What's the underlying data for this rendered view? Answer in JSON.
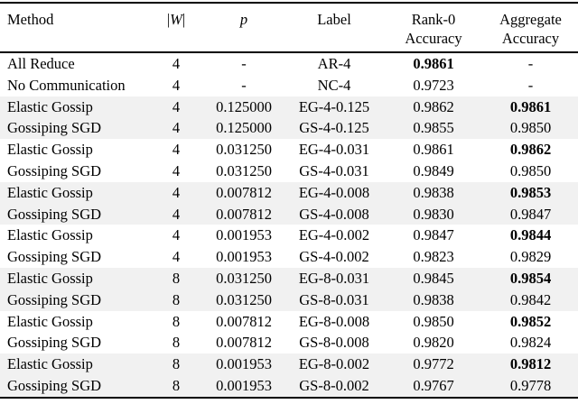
{
  "colors": {
    "background": "#ffffff",
    "stripe": "#f1f1f1",
    "rule": "#000000",
    "text": "#000000"
  },
  "table": {
    "header": {
      "method": "Method",
      "w_bar": "|",
      "w_letter": "W",
      "p": "p",
      "label": "Label",
      "rank0_line1": "Rank-0",
      "rank0_line2": "Accuracy",
      "aggregate_line1": "Aggregate",
      "aggregate_line2": "Accuracy"
    },
    "rows": [
      {
        "method": "All Reduce",
        "workers": "4",
        "p": "-",
        "label": "AR-4",
        "rank0": "0.9861",
        "rank0_bold": true,
        "aggregate": "-",
        "aggregate_bold": false,
        "shaded": false
      },
      {
        "method": "No Communication",
        "workers": "4",
        "p": "-",
        "label": "NC-4",
        "rank0": "0.9723",
        "rank0_bold": false,
        "aggregate": "-",
        "aggregate_bold": false,
        "shaded": false
      },
      {
        "method": "Elastic Gossip",
        "workers": "4",
        "p": "0.125000",
        "label": "EG-4-0.125",
        "rank0": "0.9862",
        "rank0_bold": false,
        "aggregate": "0.9861",
        "aggregate_bold": true,
        "shaded": true
      },
      {
        "method": "Gossiping SGD",
        "workers": "4",
        "p": "0.125000",
        "label": "GS-4-0.125",
        "rank0": "0.9855",
        "rank0_bold": false,
        "aggregate": "0.9850",
        "aggregate_bold": false,
        "shaded": true
      },
      {
        "method": "Elastic Gossip",
        "workers": "4",
        "p": "0.031250",
        "label": "EG-4-0.031",
        "rank0": "0.9861",
        "rank0_bold": false,
        "aggregate": "0.9862",
        "aggregate_bold": true,
        "shaded": false
      },
      {
        "method": "Gossiping SGD",
        "workers": "4",
        "p": "0.031250",
        "label": "GS-4-0.031",
        "rank0": "0.9849",
        "rank0_bold": false,
        "aggregate": "0.9850",
        "aggregate_bold": false,
        "shaded": false
      },
      {
        "method": "Elastic Gossip",
        "workers": "4",
        "p": "0.007812",
        "label": "EG-4-0.008",
        "rank0": "0.9838",
        "rank0_bold": false,
        "aggregate": "0.9853",
        "aggregate_bold": true,
        "shaded": true
      },
      {
        "method": "Gossiping SGD",
        "workers": "4",
        "p": "0.007812",
        "label": "GS-4-0.008",
        "rank0": "0.9830",
        "rank0_bold": false,
        "aggregate": "0.9847",
        "aggregate_bold": false,
        "shaded": true
      },
      {
        "method": "Elastic Gossip",
        "workers": "4",
        "p": "0.001953",
        "label": "EG-4-0.002",
        "rank0": "0.9847",
        "rank0_bold": false,
        "aggregate": "0.9844",
        "aggregate_bold": true,
        "shaded": false
      },
      {
        "method": "Gossiping SGD",
        "workers": "4",
        "p": "0.001953",
        "label": "GS-4-0.002",
        "rank0": "0.9823",
        "rank0_bold": false,
        "aggregate": "0.9829",
        "aggregate_bold": false,
        "shaded": false
      },
      {
        "method": "Elastic Gossip",
        "workers": "8",
        "p": "0.031250",
        "label": "EG-8-0.031",
        "rank0": "0.9845",
        "rank0_bold": false,
        "aggregate": "0.9854",
        "aggregate_bold": true,
        "shaded": true
      },
      {
        "method": "Gossiping SGD",
        "workers": "8",
        "p": "0.031250",
        "label": "GS-8-0.031",
        "rank0": "0.9838",
        "rank0_bold": false,
        "aggregate": "0.9842",
        "aggregate_bold": false,
        "shaded": true
      },
      {
        "method": "Elastic Gossip",
        "workers": "8",
        "p": "0.007812",
        "label": "EG-8-0.008",
        "rank0": "0.9850",
        "rank0_bold": false,
        "aggregate": "0.9852",
        "aggregate_bold": true,
        "shaded": false
      },
      {
        "method": "Gossiping SGD",
        "workers": "8",
        "p": "0.007812",
        "label": "GS-8-0.008",
        "rank0": "0.9820",
        "rank0_bold": false,
        "aggregate": "0.9824",
        "aggregate_bold": false,
        "shaded": false
      },
      {
        "method": "Elastic Gossip",
        "workers": "8",
        "p": "0.001953",
        "label": "EG-8-0.002",
        "rank0": "0.9772",
        "rank0_bold": false,
        "aggregate": "0.9812",
        "aggregate_bold": true,
        "shaded": true
      },
      {
        "method": "Gossiping SGD",
        "workers": "8",
        "p": "0.001953",
        "label": "GS-8-0.002",
        "rank0": "0.9767",
        "rank0_bold": false,
        "aggregate": "0.9778",
        "aggregate_bold": false,
        "shaded": true
      }
    ]
  }
}
